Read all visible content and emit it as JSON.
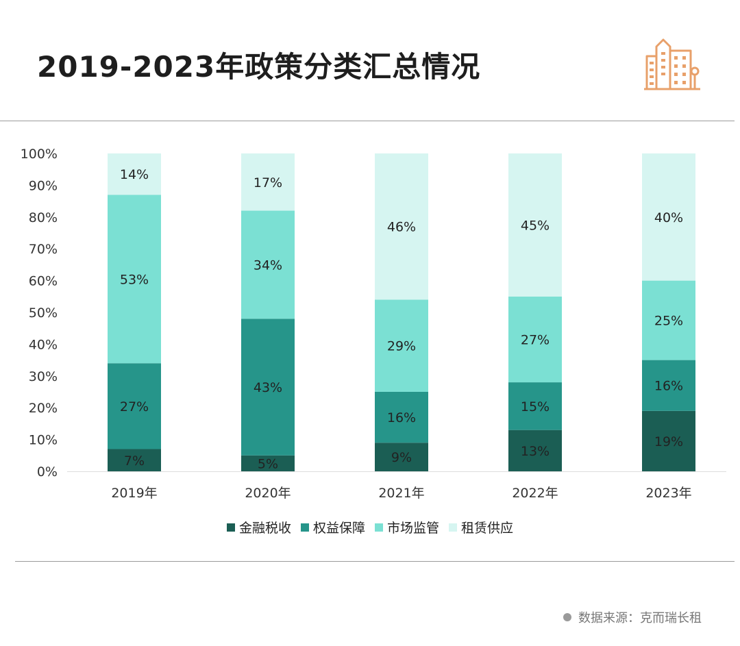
{
  "title": "2019-2023年政策分类汇总情况",
  "source": "数据来源：克而瑞长租",
  "colors": {
    "series": [
      "#1b5e54",
      "#26958a",
      "#7be0d3",
      "#d6f5f1"
    ],
    "axis": "#dddddd",
    "text": "#222222",
    "rule": "#9a9a9a",
    "logo": "#e8a06a"
  },
  "chart_data": {
    "type": "bar",
    "stacked": true,
    "title": "2019-2023年政策分类汇总情况",
    "categories": [
      "2019年",
      "2020年",
      "2021年",
      "2022年",
      "2023年"
    ],
    "series": [
      {
        "name": "金融税收",
        "values": [
          7,
          5,
          9,
          13,
          19
        ],
        "labels": [
          "7%",
          "5%",
          "9%",
          "13%",
          "19%"
        ]
      },
      {
        "name": "权益保障",
        "values": [
          27,
          43,
          16,
          15,
          16
        ],
        "labels": [
          "27%",
          "43%",
          "16%",
          "15%",
          "16%"
        ]
      },
      {
        "name": "市场监管",
        "values": [
          53,
          34,
          29,
          27,
          25
        ],
        "labels": [
          "53%",
          "34%",
          "29%",
          "27%",
          "25%"
        ]
      },
      {
        "name": "租赁供应",
        "values": [
          14,
          17,
          46,
          45,
          40
        ],
        "labels": [
          "14%",
          "17%",
          "46%",
          "45%",
          "40%"
        ]
      }
    ],
    "ylim": [
      0,
      100
    ],
    "yticks": [
      "0%",
      "10%",
      "20%",
      "30%",
      "40%",
      "50%",
      "60%",
      "70%",
      "80%",
      "90%",
      "100%"
    ],
    "xlabel": "",
    "ylabel": "",
    "legend_position": "bottom",
    "grid": false
  }
}
